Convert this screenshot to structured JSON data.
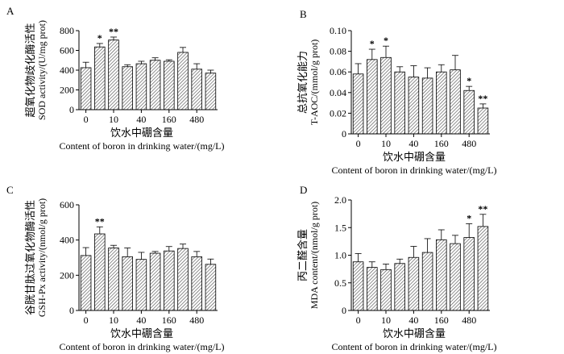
{
  "chart_data": [
    {
      "type": "bar",
      "panel_label": "A",
      "ylabel_cn": "超氧化物歧化酶活性",
      "ylabel_en": "SOD activity/(U/mg prot)",
      "xlabel_cn": "饮水中硼含量",
      "xlabel_en": "Content of boron in drinking water/(mg/L)",
      "ylim": [
        0,
        800
      ],
      "yticks": [
        "0",
        "200",
        "400",
        "600",
        "800"
      ],
      "tick_values": [
        0,
        200,
        400,
        600,
        800
      ],
      "xticks": [
        "0",
        "10",
        "40",
        "160",
        "480"
      ],
      "values": [
        425,
        635,
        705,
        435,
        465,
        500,
        490,
        580,
        410,
        370
      ],
      "errors": [
        55,
        35,
        30,
        20,
        25,
        25,
        15,
        50,
        55,
        30
      ],
      "annotations": [
        "",
        "*",
        "**",
        "",
        "",
        "",
        "",
        "",
        "",
        ""
      ]
    },
    {
      "type": "bar",
      "panel_label": "B",
      "ylabel_cn": "总抗氧化能力",
      "ylabel_en": "T-AOC/(mmol/g prot)",
      "xlabel_cn": "饮水中硼含量",
      "xlabel_en": "Content of boron in drinking water/(mg/L)",
      "ylim": [
        0,
        0.1
      ],
      "yticks": [
        "0",
        "0.02",
        "0.04",
        "0.06",
        "0.08",
        "0.10"
      ],
      "tick_values": [
        0,
        0.02,
        0.04,
        0.06,
        0.08,
        0.1
      ],
      "xticks": [
        "0",
        "10",
        "40",
        "160",
        "480"
      ],
      "values": [
        0.058,
        0.072,
        0.074,
        0.06,
        0.055,
        0.054,
        0.06,
        0.062,
        0.042,
        0.025
      ],
      "errors": [
        0.01,
        0.01,
        0.011,
        0.005,
        0.011,
        0.01,
        0.007,
        0.014,
        0.004,
        0.004
      ],
      "annotations": [
        "",
        "*",
        "*",
        "",
        "",
        "",
        "",
        "",
        "*",
        "**"
      ]
    },
    {
      "type": "bar",
      "panel_label": "C",
      "ylabel_cn": "谷胱甘肽过氧化物酶活性",
      "ylabel_en": "GSH-Px activity/(nmol/g prot)",
      "xlabel_cn": "饮水中硼含量",
      "xlabel_en": "Content of boron in drinking water/(mg/L)",
      "ylim": [
        0,
        600
      ],
      "yticks": [
        "0",
        "200",
        "400",
        "600"
      ],
      "tick_values": [
        0,
        200,
        400,
        600
      ],
      "xticks": [
        "0",
        "10",
        "40",
        "160",
        "480"
      ],
      "values": [
        312,
        435,
        355,
        305,
        290,
        325,
        338,
        352,
        305,
        262
      ],
      "errors": [
        45,
        40,
        15,
        50,
        40,
        10,
        25,
        25,
        30,
        30
      ],
      "annotations": [
        "",
        "**",
        "",
        "",
        "",
        "",
        "",
        "",
        "",
        ""
      ]
    },
    {
      "type": "bar",
      "panel_label": "D",
      "ylabel_cn": "丙二醛含量",
      "ylabel_en": "MDA content/(nmol/g prot)",
      "xlabel_cn": "饮水中硼含量",
      "xlabel_en": "Content of boron in drinking water/(mg/L)",
      "ylim": [
        0,
        2.0
      ],
      "yticks": [
        "0",
        "0.5",
        "1.0",
        "1.5",
        "2.0"
      ],
      "tick_values": [
        0,
        0.5,
        1.0,
        1.5,
        2.0
      ],
      "xticks": [
        "0",
        "10",
        "40",
        "160",
        "480"
      ],
      "values": [
        0.88,
        0.78,
        0.74,
        0.85,
        0.96,
        1.05,
        1.28,
        1.21,
        1.32,
        1.52
      ],
      "errors": [
        0.15,
        0.1,
        0.1,
        0.08,
        0.2,
        0.25,
        0.18,
        0.15,
        0.25,
        0.22
      ],
      "annotations": [
        "",
        "",
        "",
        "",
        "",
        "",
        "",
        "",
        "*",
        "**"
      ]
    }
  ]
}
